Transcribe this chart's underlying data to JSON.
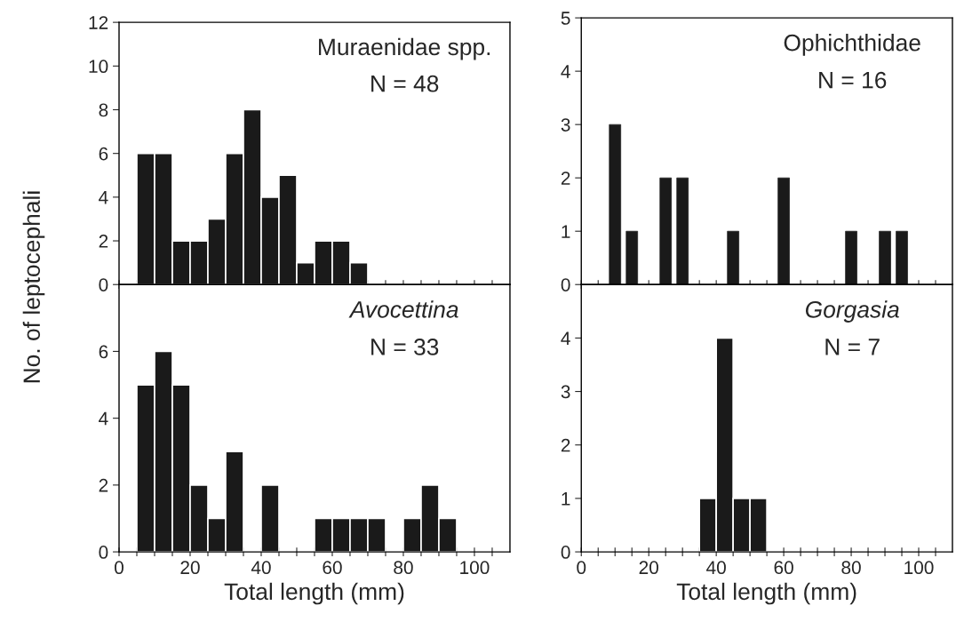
{
  "chart_data": [
    {
      "type": "histogram",
      "title": "Muraenidae spp.",
      "subtitle": "N = 48",
      "ylabel": "No. of leptocephali",
      "color": "#1a1a1a",
      "bins": [
        5,
        10,
        15,
        20,
        25,
        30,
        35,
        40,
        45,
        50,
        55,
        60,
        65,
        70
      ],
      "values": [
        6,
        6,
        2,
        2,
        3,
        6,
        8,
        4,
        5,
        1,
        2,
        2,
        1
      ],
      "xlim": [
        0,
        110
      ],
      "ylim": [
        0,
        12
      ],
      "yticks": [
        0,
        2,
        4,
        6,
        8,
        10,
        12
      ],
      "xticks": [
        0,
        {
          "value": 5,
          "label": null
        },
        {
          "value": 10,
          "label": null
        },
        {
          "value": 15,
          "label": null
        },
        20,
        {
          "value": 25,
          "label": null
        },
        {
          "value": 30,
          "label": null
        },
        {
          "value": 35,
          "label": null
        },
        40,
        {
          "value": 45,
          "label": null
        },
        {
          "value": 50,
          "label": null
        },
        {
          "value": 55,
          "label": null
        },
        60,
        {
          "value": 65,
          "label": null
        },
        {
          "value": 70,
          "label": null
        },
        {
          "value": 75,
          "label": null
        },
        80,
        {
          "value": 85,
          "label": null
        },
        {
          "value": 90,
          "label": null
        },
        {
          "value": 95,
          "label": null
        },
        100,
        {
          "value": 105,
          "label": null
        }
      ],
      "tick_labels": "y"
    },
    {
      "type": "bar",
      "title": "Ophichthidae",
      "subtitle": "N = 16",
      "color": "#1a1a1a",
      "x": [
        10,
        15,
        25,
        30,
        45,
        60,
        80,
        90,
        95
      ],
      "values": [
        3,
        1,
        2,
        2,
        1,
        2,
        1,
        1,
        1
      ],
      "xlim": [
        0,
        110
      ],
      "ylim": [
        0,
        5
      ],
      "yticks": [
        0,
        1,
        2,
        3,
        4,
        5
      ],
      "xticks": [
        0,
        {
          "value": 5,
          "label": null
        },
        {
          "value": 10,
          "label": null
        },
        {
          "value": 15,
          "label": null
        },
        20,
        {
          "value": 25,
          "label": null
        },
        {
          "value": 30,
          "label": null
        },
        {
          "value": 35,
          "label": null
        },
        40,
        {
          "value": 45,
          "label": null
        },
        {
          "value": 50,
          "label": null
        },
        {
          "value": 55,
          "label": null
        },
        60,
        {
          "value": 65,
          "label": null
        },
        {
          "value": 70,
          "label": null
        },
        {
          "value": 75,
          "label": null
        },
        80,
        {
          "value": 85,
          "label": null
        },
        {
          "value": 90,
          "label": null
        },
        {
          "value": 95,
          "label": null
        },
        100,
        {
          "value": 105,
          "label": null
        }
      ],
      "tick_labels": "y"
    },
    {
      "type": "histogram",
      "title": "Avocettina",
      "subtitle": "N = 33",
      "xlabel": "Total length (mm)",
      "color": "#1a1a1a",
      "bins": [
        5,
        10,
        15,
        20,
        25,
        30,
        35,
        40,
        45,
        50,
        55,
        60,
        65,
        70,
        75,
        80,
        85,
        90,
        95
      ],
      "values": [
        5,
        6,
        5,
        2,
        1,
        3,
        0,
        2,
        0,
        0,
        1,
        1,
        1,
        1,
        0,
        1,
        2,
        1
      ],
      "xlim": [
        0,
        110
      ],
      "ylim": [
        0,
        8
      ],
      "yticks": [
        0,
        2,
        4,
        6
      ],
      "xticks": [
        0,
        {
          "value": 5,
          "label": null
        },
        {
          "value": 10,
          "label": null
        },
        {
          "value": 15,
          "label": null
        },
        20,
        {
          "value": 25,
          "label": null
        },
        {
          "value": 30,
          "label": null
        },
        {
          "value": 35,
          "label": null
        },
        40,
        {
          "value": 45,
          "label": null
        },
        {
          "value": 50,
          "label": null
        },
        {
          "value": 55,
          "label": null
        },
        60,
        {
          "value": 65,
          "label": null
        },
        {
          "value": 70,
          "label": null
        },
        {
          "value": 75,
          "label": null
        },
        80,
        {
          "value": 85,
          "label": null
        },
        {
          "value": 90,
          "label": null
        },
        {
          "value": 95,
          "label": null
        },
        100,
        {
          "value": 105,
          "label": null
        }
      ]
    },
    {
      "type": "histogram",
      "title": "Gorgasia",
      "subtitle": "N = 7",
      "xlabel": "Total length (mm)",
      "color": "#1a1a1a",
      "bins": [
        35,
        40,
        45,
        50,
        55
      ],
      "values": [
        1,
        4,
        1,
        1
      ],
      "xlim": [
        0,
        110
      ],
      "ylim": [
        0,
        5
      ],
      "yticks": [
        0,
        1,
        2,
        3,
        4
      ],
      "xticks": [
        0,
        {
          "value": 5,
          "label": null
        },
        {
          "value": 10,
          "label": null
        },
        {
          "value": 15,
          "label": null
        },
        20,
        {
          "value": 25,
          "label": null
        },
        {
          "value": 30,
          "label": null
        },
        {
          "value": 35,
          "label": null
        },
        40,
        {
          "value": 45,
          "label": null
        },
        {
          "value": 50,
          "label": null
        },
        {
          "value": 55,
          "label": null
        },
        60,
        {
          "value": 65,
          "label": null
        },
        {
          "value": 70,
          "label": null
        },
        {
          "value": 75,
          "label": null
        },
        80,
        {
          "value": 85,
          "label": null
        },
        {
          "value": 90,
          "label": null
        },
        {
          "value": 95,
          "label": null
        },
        100,
        {
          "value": 105,
          "label": null
        }
      ]
    }
  ]
}
